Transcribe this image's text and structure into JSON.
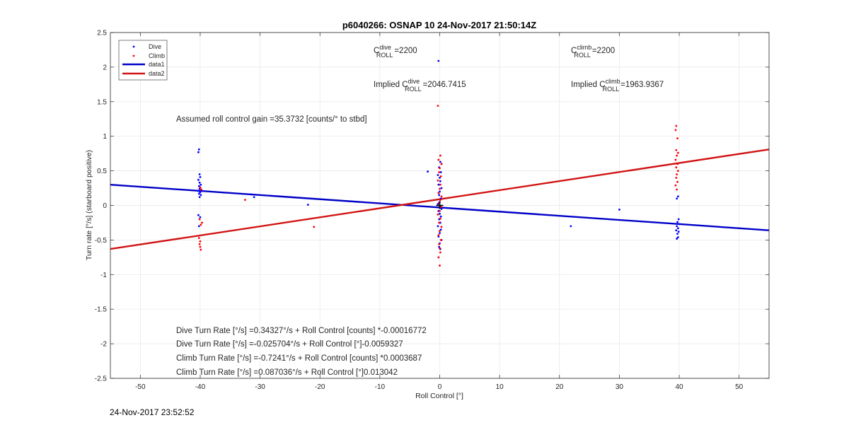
{
  "chart_data": {
    "type": "scatter",
    "title": "p6040266: OSNAP 10 24-Nov-2017 21:50:14Z",
    "xlabel": "Roll Control [°]",
    "ylabel": "Turn rate [°/s] (starboard positive)",
    "xlim": [
      -55,
      55
    ],
    "ylim": [
      -2.5,
      2.5
    ],
    "xticks": [
      -50,
      -40,
      -30,
      -20,
      -10,
      0,
      10,
      20,
      30,
      40,
      50
    ],
    "yticks": [
      -2.5,
      -2,
      -1.5,
      -1,
      -0.5,
      0,
      0.5,
      1,
      1.5,
      2,
      2.5
    ],
    "grid": true,
    "legend_position": "top-left",
    "colors": {
      "dive": "#0000ff",
      "climb": "#ff0000",
      "data1": "#0000c8",
      "data2": "#d21414",
      "cross": "#000000"
    },
    "legend": [
      {
        "label": "Dive",
        "kind": "marker",
        "color": "#0000ff"
      },
      {
        "label": "Climb",
        "kind": "marker",
        "color": "#ff0000"
      },
      {
        "label": "data1",
        "kind": "line",
        "color": "#0000c8"
      },
      {
        "label": "data2",
        "kind": "line",
        "color": "#d21414"
      }
    ],
    "series": [
      {
        "name": "Dive",
        "kind": "scatter",
        "points": [
          [
            -40.2,
            0.81
          ],
          [
            -40.3,
            0.77
          ],
          [
            -40.1,
            0.45
          ],
          [
            -40.0,
            0.41
          ],
          [
            -40.3,
            0.37
          ],
          [
            -40.1,
            0.33
          ],
          [
            -39.9,
            0.3
          ],
          [
            -40.2,
            0.28
          ],
          [
            -40.0,
            0.26
          ],
          [
            -40.1,
            0.24
          ],
          [
            -39.8,
            0.22
          ],
          [
            -40.3,
            0.21
          ],
          [
            -40.0,
            0.19
          ],
          [
            -40.2,
            0.17
          ],
          [
            -39.9,
            0.15
          ],
          [
            -40.1,
            0.12
          ],
          [
            -40.3,
            -0.14
          ],
          [
            -40.0,
            -0.17
          ],
          [
            -40.2,
            -0.3
          ],
          [
            -31.5,
            0.16
          ],
          [
            -31.0,
            0.12
          ],
          [
            -22.0,
            0.01
          ],
          [
            -2.0,
            0.49
          ],
          [
            21.9,
            -0.3
          ],
          [
            30.0,
            -0.06
          ],
          [
            -0.2,
            2.09
          ],
          [
            0.1,
            0.63
          ],
          [
            0.3,
            0.6
          ],
          [
            -0.1,
            0.55
          ],
          [
            0.2,
            0.48
          ],
          [
            -0.3,
            0.44
          ],
          [
            0.0,
            0.4
          ],
          [
            0.1,
            0.35
          ],
          [
            -0.2,
            0.3
          ],
          [
            0.3,
            0.25
          ],
          [
            0.0,
            0.2
          ],
          [
            -0.1,
            0.15
          ],
          [
            0.2,
            0.1
          ],
          [
            0.0,
            0.05
          ],
          [
            -0.3,
            0.02
          ],
          [
            0.1,
            -0.02
          ],
          [
            0.3,
            -0.05
          ],
          [
            -0.2,
            -0.08
          ],
          [
            0.0,
            -0.12
          ],
          [
            0.2,
            -0.16
          ],
          [
            -0.1,
            -0.2
          ],
          [
            0.1,
            -0.25
          ],
          [
            -0.3,
            -0.3
          ],
          [
            0.2,
            -0.35
          ],
          [
            0.0,
            -0.4
          ],
          [
            -0.2,
            -0.45
          ],
          [
            0.3,
            -0.5
          ],
          [
            0.0,
            -0.55
          ],
          [
            -0.1,
            -0.6
          ],
          [
            0.1,
            -0.63
          ],
          [
            39.8,
            0.13
          ],
          [
            39.6,
            0.1
          ],
          [
            39.9,
            -0.2
          ],
          [
            39.7,
            -0.24
          ],
          [
            40.0,
            -0.27
          ],
          [
            39.6,
            -0.3
          ],
          [
            39.8,
            -0.33
          ],
          [
            39.5,
            -0.36
          ],
          [
            39.9,
            -0.38
          ],
          [
            39.7,
            -0.41
          ],
          [
            39.8,
            -0.46
          ],
          [
            39.6,
            -0.48
          ]
        ]
      },
      {
        "name": "Climb",
        "kind": "scatter",
        "points": [
          [
            -40.0,
            0.26
          ],
          [
            -39.8,
            0.23
          ],
          [
            -40.1,
            -0.2
          ],
          [
            -39.7,
            -0.25
          ],
          [
            -39.9,
            -0.28
          ],
          [
            -40.2,
            -0.47
          ],
          [
            -40.0,
            -0.52
          ],
          [
            -40.1,
            -0.56
          ],
          [
            -40.0,
            -0.6
          ],
          [
            -39.9,
            -0.64
          ],
          [
            -32.5,
            0.08
          ],
          [
            -21.0,
            -0.31
          ],
          [
            -0.3,
            1.44
          ],
          [
            0.1,
            0.72
          ],
          [
            -0.2,
            0.66
          ],
          [
            0.3,
            0.6
          ],
          [
            0.0,
            0.54
          ],
          [
            -0.1,
            0.48
          ],
          [
            0.2,
            0.42
          ],
          [
            -0.3,
            0.36
          ],
          [
            0.1,
            0.3
          ],
          [
            0.0,
            0.24
          ],
          [
            -0.2,
            0.18
          ],
          [
            0.3,
            0.13
          ],
          [
            0.1,
            0.08
          ],
          [
            -0.1,
            0.04
          ],
          [
            0.2,
            -0.02
          ],
          [
            0.0,
            -0.08
          ],
          [
            -0.3,
            -0.13
          ],
          [
            0.1,
            -0.19
          ],
          [
            -0.1,
            -0.25
          ],
          [
            0.3,
            -0.31
          ],
          [
            0.0,
            -0.37
          ],
          [
            -0.2,
            -0.43
          ],
          [
            0.2,
            -0.5
          ],
          [
            -0.1,
            -0.56
          ],
          [
            0.0,
            -0.62
          ],
          [
            0.1,
            -0.68
          ],
          [
            -0.2,
            -0.75
          ],
          [
            0.0,
            -0.87
          ],
          [
            39.5,
            1.15
          ],
          [
            39.4,
            1.09
          ],
          [
            39.7,
            0.97
          ],
          [
            39.5,
            0.8
          ],
          [
            39.8,
            0.76
          ],
          [
            39.6,
            0.72
          ],
          [
            39.4,
            0.66
          ],
          [
            39.7,
            0.6
          ],
          [
            39.5,
            0.55
          ],
          [
            39.8,
            0.5
          ],
          [
            39.6,
            0.45
          ],
          [
            39.5,
            0.4
          ],
          [
            39.7,
            0.34
          ],
          [
            39.4,
            0.29
          ],
          [
            39.6,
            0.23
          ]
        ]
      },
      {
        "name": "data1",
        "kind": "line",
        "points": [
          [
            -55,
            0.3
          ],
          [
            55,
            -0.36
          ]
        ]
      },
      {
        "name": "data2",
        "kind": "line",
        "points": [
          [
            -55,
            -0.63
          ],
          [
            55,
            0.81
          ]
        ]
      }
    ],
    "cross_marker": [
      0,
      0
    ],
    "annotations": {
      "gain": "Assumed roll control gain =35.3732 [counts/° to stbd]",
      "c_dive_base": "C",
      "c_dive_sup": "dive",
      "c_dive_sub": "ROLL",
      "c_dive_val": "=2200",
      "c_climb_base": "C",
      "c_climb_sup": "climb",
      "c_climb_sub": "ROLL",
      "c_climb_val": "=2200",
      "implied_dive_base": "Implied C",
      "implied_dive_sup": "dive",
      "implied_dive_sub": "ROLL",
      "implied_dive_val": "=2046.7415",
      "implied_climb_base": "Implied C",
      "implied_climb_sup": "climb",
      "implied_climb_sub": "ROLL",
      "implied_climb_val": "=1963.9367",
      "eq1": "Dive Turn Rate [°/s] =0.34327°/s + Roll Control [counts] *-0.00016772",
      "eq2": "Dive Turn Rate [°/s] =-0.025704°/s + Roll Control [°]-0.0059327",
      "eq3": "Climb Turn Rate [°/s] =-0.7241°/s + Roll Control [counts] *0.0003687",
      "eq4": "Climb Turn Rate [°/s] =0.087036°/s + Roll Control [°]0.013042"
    }
  },
  "footer": {
    "timestamp": "24-Nov-2017 23:52:52"
  }
}
